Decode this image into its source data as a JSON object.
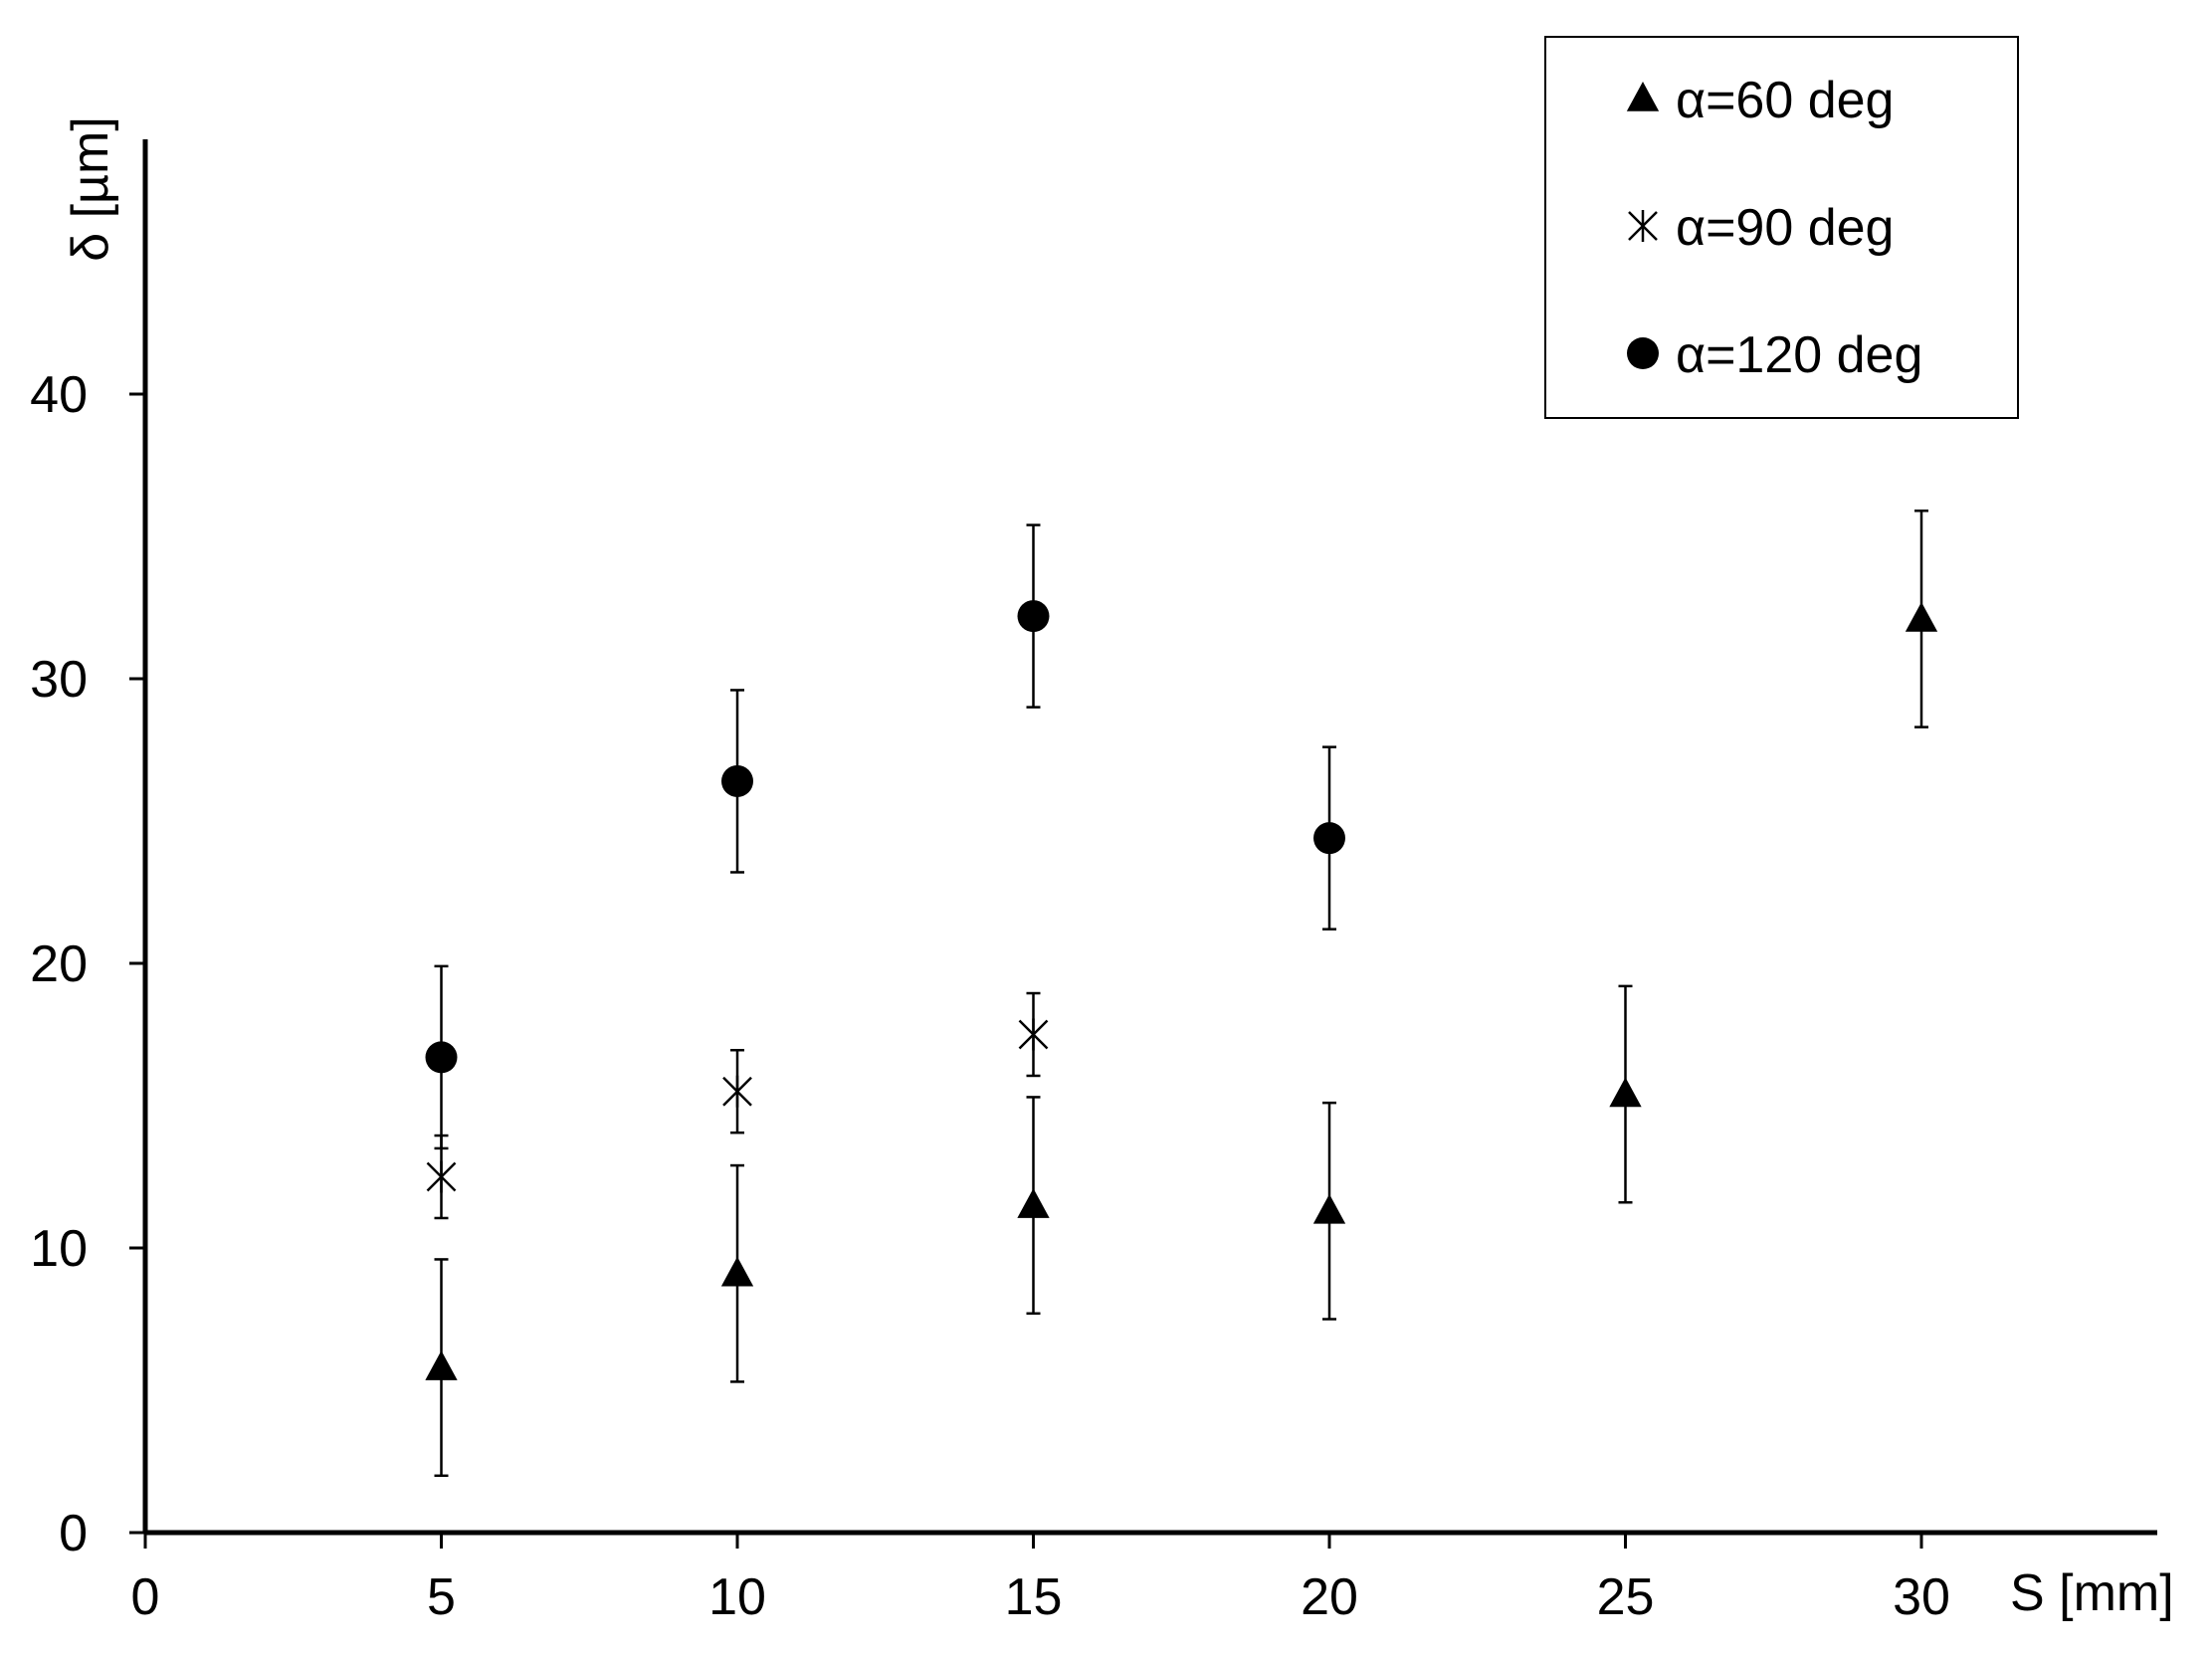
{
  "chart_data": {
    "type": "scatter",
    "xlabel": "S [mm]",
    "ylabel": "δ [µm]",
    "xlim": [
      0,
      34
    ],
    "ylim": [
      0,
      49
    ],
    "x_ticks": [
      0,
      5,
      10,
      15,
      20,
      25,
      30
    ],
    "y_ticks": [
      0,
      10,
      20,
      30,
      40
    ],
    "grid": false,
    "legend_position": "top-right",
    "series": [
      {
        "name": "α=60 deg",
        "marker": "triangle",
        "points": [
          {
            "x": 5,
            "y": 5.8,
            "err": 3.8
          },
          {
            "x": 10,
            "y": 9.1,
            "err": 3.8
          },
          {
            "x": 15,
            "y": 11.5,
            "err": 3.8
          },
          {
            "x": 20,
            "y": 11.3,
            "err": 3.8
          },
          {
            "x": 25,
            "y": 15.4,
            "err": 3.8
          },
          {
            "x": 30,
            "y": 32.1,
            "err": 3.8
          }
        ]
      },
      {
        "name": "α=90 deg",
        "marker": "asterisk",
        "points": [
          {
            "x": 5,
            "y": 12.5,
            "err": 1.45
          },
          {
            "x": 10,
            "y": 15.5,
            "err": 1.45
          },
          {
            "x": 15,
            "y": 17.5,
            "err": 1.45
          }
        ]
      },
      {
        "name": "α=120 deg",
        "marker": "circle",
        "points": [
          {
            "x": 5,
            "y": 16.7,
            "err": 3.2
          },
          {
            "x": 10,
            "y": 26.4,
            "err": 3.2
          },
          {
            "x": 15,
            "y": 32.2,
            "err": 3.2
          },
          {
            "x": 20,
            "y": 24.4,
            "err": 3.2
          }
        ]
      }
    ]
  }
}
